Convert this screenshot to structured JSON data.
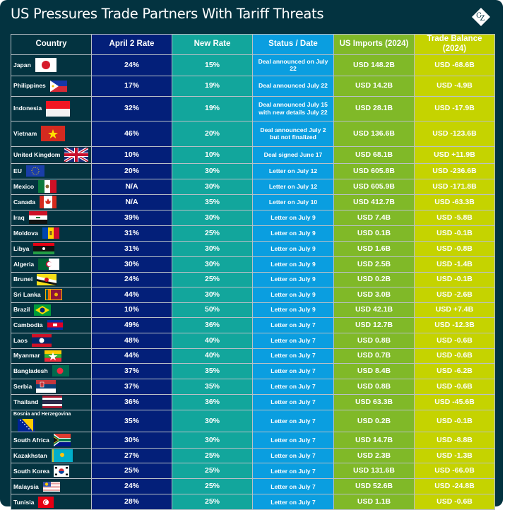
{
  "title": "US Pressures Trade Partners With Tariff Threats",
  "logo_text": "CZ",
  "columns": [
    "Country",
    "April 2 Rate",
    "New Rate",
    "Status / Date",
    "US Imports (2024)",
    "Trade Balance (2024)"
  ],
  "colors": {
    "country": "#033340",
    "april_rate": "#031f79",
    "new_rate": "#12a69c",
    "status": "#0a9ee0",
    "imports": "#80b928",
    "balance": "#c5d300"
  },
  "rows": [
    {
      "country": "Japan",
      "flag": "japan-flag",
      "april_rate": "24%",
      "new_rate": "15%",
      "status": "Deal announced on July 22",
      "imports": "USD 148.2B",
      "balance": "USD -68.6B"
    },
    {
      "country": "Philippines",
      "flag": "philippines-flag",
      "april_rate": "17%",
      "new_rate": "19%",
      "status": "Deal announced July 22",
      "imports": "USD 14.2B",
      "balance": "USD -4.9B"
    },
    {
      "country": "Indonesia",
      "flag": "indonesia-flag",
      "april_rate": "32%",
      "new_rate": "19%",
      "status": "Deal announced July 15 with new details July 22",
      "imports": "USD 28.1B",
      "balance": "USD -17.9B"
    },
    {
      "country": "Vietnam",
      "flag": "vietnam-flag",
      "april_rate": "46%",
      "new_rate": "20%",
      "status": "Deal announced July 2 but not finalized",
      "imports": "USD 136.6B",
      "balance": "USD -123.6B"
    },
    {
      "country": "United Kingdom",
      "flag": "uk-flag",
      "april_rate": "10%",
      "new_rate": "10%",
      "status": "Deal signed June 17",
      "imports": "USD 68.1B",
      "balance": "USD +11.9B"
    },
    {
      "country": "EU",
      "flag": "eu-flag",
      "april_rate": "20%",
      "new_rate": "30%",
      "status": "Letter on July 12",
      "imports": "USD 605.8B",
      "balance": "USD -236.6B"
    },
    {
      "country": "Mexico",
      "flag": "mexico-flag",
      "april_rate": "N/A",
      "new_rate": "30%",
      "status": "Letter on July 12",
      "imports": "USD 605.9B",
      "balance": "USD -171.8B"
    },
    {
      "country": "Canada",
      "flag": "canada-flag",
      "april_rate": "N/A",
      "new_rate": "35%",
      "status": "Letter on July 10",
      "imports": "USD 412.7B",
      "balance": "USD -63.3B"
    },
    {
      "country": "Iraq",
      "flag": "iraq-flag",
      "april_rate": "39%",
      "new_rate": "30%",
      "status": "Letter on July 9",
      "imports": "USD 7.4B",
      "balance": "USD -5.8B"
    },
    {
      "country": "Moldova",
      "flag": "moldova-flag",
      "april_rate": "31%",
      "new_rate": "25%",
      "status": "Letter on July 9",
      "imports": "USD 0.1B",
      "balance": "USD -0.1B"
    },
    {
      "country": "Libya",
      "flag": "libya-flag",
      "april_rate": "31%",
      "new_rate": "30%",
      "status": "Letter on July 9",
      "imports": "USD 1.6B",
      "balance": "USD -0.8B"
    },
    {
      "country": "Algeria",
      "flag": "algeria-flag",
      "april_rate": "30%",
      "new_rate": "30%",
      "status": "Letter on July 9",
      "imports": "USD 2.5B",
      "balance": "USD -1.4B"
    },
    {
      "country": "Brunei",
      "flag": "brunei-flag",
      "april_rate": "24%",
      "new_rate": "25%",
      "status": "Letter on July 9",
      "imports": "USD 0.2B",
      "balance": "USD -0.1B"
    },
    {
      "country": "Sri Lanka",
      "flag": "sri-lanka-flag",
      "april_rate": "44%",
      "new_rate": "30%",
      "status": "Letter on July 9",
      "imports": "USD 3.0B",
      "balance": "USD -2.6B"
    },
    {
      "country": "Brazil",
      "flag": "brazil-flag",
      "april_rate": "10%",
      "new_rate": "50%",
      "status": "Letter on July 9",
      "imports": "USD 42.1B",
      "balance": "USD +7.4B"
    },
    {
      "country": "Cambodia",
      "flag": "cambodia-flag",
      "april_rate": "49%",
      "new_rate": "36%",
      "status": "Letter on July 7",
      "imports": "USD 12.7B",
      "balance": "USD -12.3B"
    },
    {
      "country": "Laos",
      "flag": "laos-flag",
      "april_rate": "48%",
      "new_rate": "40%",
      "status": "Letter on July 7",
      "imports": "USD 0.8B",
      "balance": "USD -0.6B"
    },
    {
      "country": "Myanmar",
      "flag": "myanmar-flag",
      "april_rate": "44%",
      "new_rate": "40%",
      "status": "Letter on July 7",
      "imports": "USD 0.7B",
      "balance": "USD -0.6B"
    },
    {
      "country": "Bangladesh",
      "flag": "bangladesh-flag",
      "april_rate": "37%",
      "new_rate": "35%",
      "status": "Letter on July 7",
      "imports": "USD 8.4B",
      "balance": "USD -6.2B"
    },
    {
      "country": "Serbia",
      "flag": "serbia-flag",
      "april_rate": "37%",
      "new_rate": "35%",
      "status": "Letter on July 7",
      "imports": "USD 0.8B",
      "balance": "USD -0.6B"
    },
    {
      "country": "Thailand",
      "flag": "thailand-flag",
      "april_rate": "36%",
      "new_rate": "36%",
      "status": "Letter on July 7",
      "imports": "USD 63.3B",
      "balance": "USD -45.6B"
    },
    {
      "country": "Bosnia and Herzegovina",
      "flag": "bosnia-flag",
      "april_rate": "35%",
      "new_rate": "30%",
      "status": "Letter on July 7",
      "imports": "USD 0.2B",
      "balance": "USD -0.1B"
    },
    {
      "country": "South Africa",
      "flag": "south-africa-flag",
      "april_rate": "30%",
      "new_rate": "30%",
      "status": "Letter on July 7",
      "imports": "USD 14.7B",
      "balance": "USD -8.8B"
    },
    {
      "country": "Kazakhstan",
      "flag": "kazakhstan-flag",
      "april_rate": "27%",
      "new_rate": "25%",
      "status": "Letter on July 7",
      "imports": "USD 2.3B",
      "balance": "USD -1.3B"
    },
    {
      "country": "South Korea",
      "flag": "south-korea-flag",
      "april_rate": "25%",
      "new_rate": "25%",
      "status": "Letter on July 7",
      "imports": "USD 131.6B",
      "balance": "USD -66.0B"
    },
    {
      "country": "Malaysia",
      "flag": "malaysia-flag",
      "april_rate": "24%",
      "new_rate": "25%",
      "status": "Letter on July 7",
      "imports": "USD 52.6B",
      "balance": "USD -24.8B"
    },
    {
      "country": "Tunisia",
      "flag": "tunisia-flag",
      "april_rate": "28%",
      "new_rate": "25%",
      "status": "Letter on July 7",
      "imports": "USD 1.1B",
      "balance": "USD -0.6B"
    }
  ]
}
